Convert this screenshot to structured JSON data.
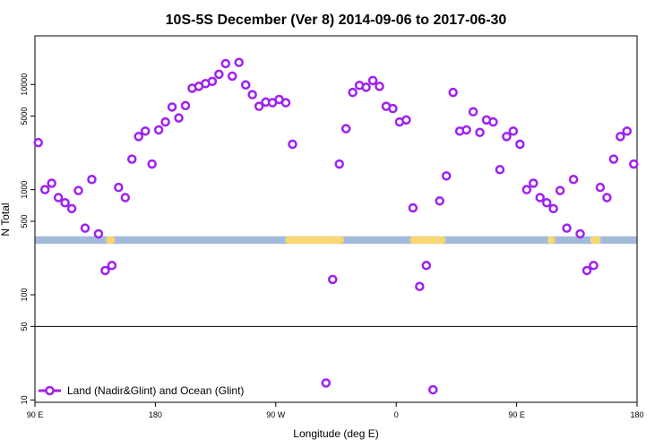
{
  "colors": {
    "series": "#a020f0",
    "ocean_band": "#a3bbdb",
    "land_band": "#f8d672",
    "axis": "#000000",
    "background": "#ffffff"
  },
  "chart_data": {
    "type": "scatter",
    "title": "10S-5S December (Ver 8)   2014-09-06 to 2017-06-30",
    "xlabel": "Longitude (deg E)",
    "ylabel": "N Total",
    "yscale": "log",
    "xlim": [
      90,
      540
    ],
    "ylim": [
      9.5,
      29000
    ],
    "xticks": [
      {
        "value": 90,
        "label": "90 E"
      },
      {
        "value": 180,
        "label": "180"
      },
      {
        "value": 270,
        "label": "90 W"
      },
      {
        "value": 360,
        "label": "0"
      },
      {
        "value": 450,
        "label": "90 E"
      },
      {
        "value": 540,
        "label": "180"
      }
    ],
    "yticks": [
      {
        "value": 10,
        "label": "10"
      },
      {
        "value": 50,
        "label": "50"
      },
      {
        "value": 100,
        "label": "100"
      },
      {
        "value": 500,
        "label": "500"
      },
      {
        "value": 1000,
        "label": "1000"
      },
      {
        "value": 5000,
        "label": "5000"
      },
      {
        "value": 10000,
        "label": "10000"
      }
    ],
    "reference_line": 50,
    "map_strip": {
      "y_range": [
        305,
        360
      ],
      "land_x_ranges": [
        [
          143,
          150
        ],
        [
          277,
          321
        ],
        [
          370,
          397
        ],
        [
          473,
          479
        ],
        [
          505,
          513
        ]
      ]
    },
    "legend": {
      "label": "Land (Nadir&Glint) and Ocean (Glint)",
      "position": "bottom-left"
    },
    "series": [
      {
        "name": "Land (Nadir&Glint) and Ocean (Glint)",
        "x": [
          92.5,
          97.5,
          102.5,
          107.5,
          112.5,
          117.5,
          122.5,
          127.5,
          132.5,
          137.5,
          142.5,
          147.5,
          152.5,
          157.5,
          162.5,
          167.5,
          172.5,
          177.5,
          182.5,
          187.5,
          192.5,
          197.5,
          202.5,
          207.5,
          212.5,
          217.5,
          222.5,
          227.5,
          232.5,
          237.5,
          242.5,
          247.5,
          252.5,
          257.5,
          262.5,
          267.5,
          272.5,
          277.5,
          282.5,
          307.5,
          312.5,
          317.5,
          322.5,
          327.5,
          332.5,
          337.5,
          342.5,
          347.5,
          352.5,
          357.5,
          362.5,
          367.5,
          372.5,
          377.5,
          382.5,
          387.5,
          392.5,
          397.5,
          402.5,
          407.5,
          412.5,
          417.5,
          422.5,
          427.5,
          432.5,
          437.5,
          442.5,
          447.5,
          452.5,
          457.5,
          462.5,
          467.5,
          472.5,
          477.5,
          482.5,
          487.5,
          492.5,
          497.5,
          502.5,
          507.5,
          512.5,
          517.5,
          522.5,
          527.5,
          532.5,
          537.5
        ],
        "y": [
          2800,
          1000,
          1150,
          840,
          750,
          660,
          980,
          430,
          1250,
          380,
          170,
          190,
          1050,
          840,
          1950,
          3200,
          3600,
          1750,
          3700,
          4400,
          6100,
          4800,
          6300,
          9200,
          9600,
          10200,
          10700,
          12500,
          15800,
          12000,
          16200,
          9900,
          8000,
          6200,
          6800,
          6700,
          7200,
          6700,
          2700,
          14.5,
          140,
          1750,
          3800,
          8400,
          9800,
          9400,
          10900,
          9600,
          6200,
          5900,
          4400,
          4600,
          670,
          120,
          190,
          12.5,
          780,
          1350,
          8400,
          3600,
          3700,
          5500,
          3500,
          4600,
          4400,
          1550,
          3200,
          3600,
          2700,
          1000,
          1150,
          840,
          750,
          660,
          980,
          430,
          1250,
          380,
          170,
          190,
          1050,
          840,
          1950,
          3200,
          3600,
          1750
        ]
      }
    ]
  }
}
